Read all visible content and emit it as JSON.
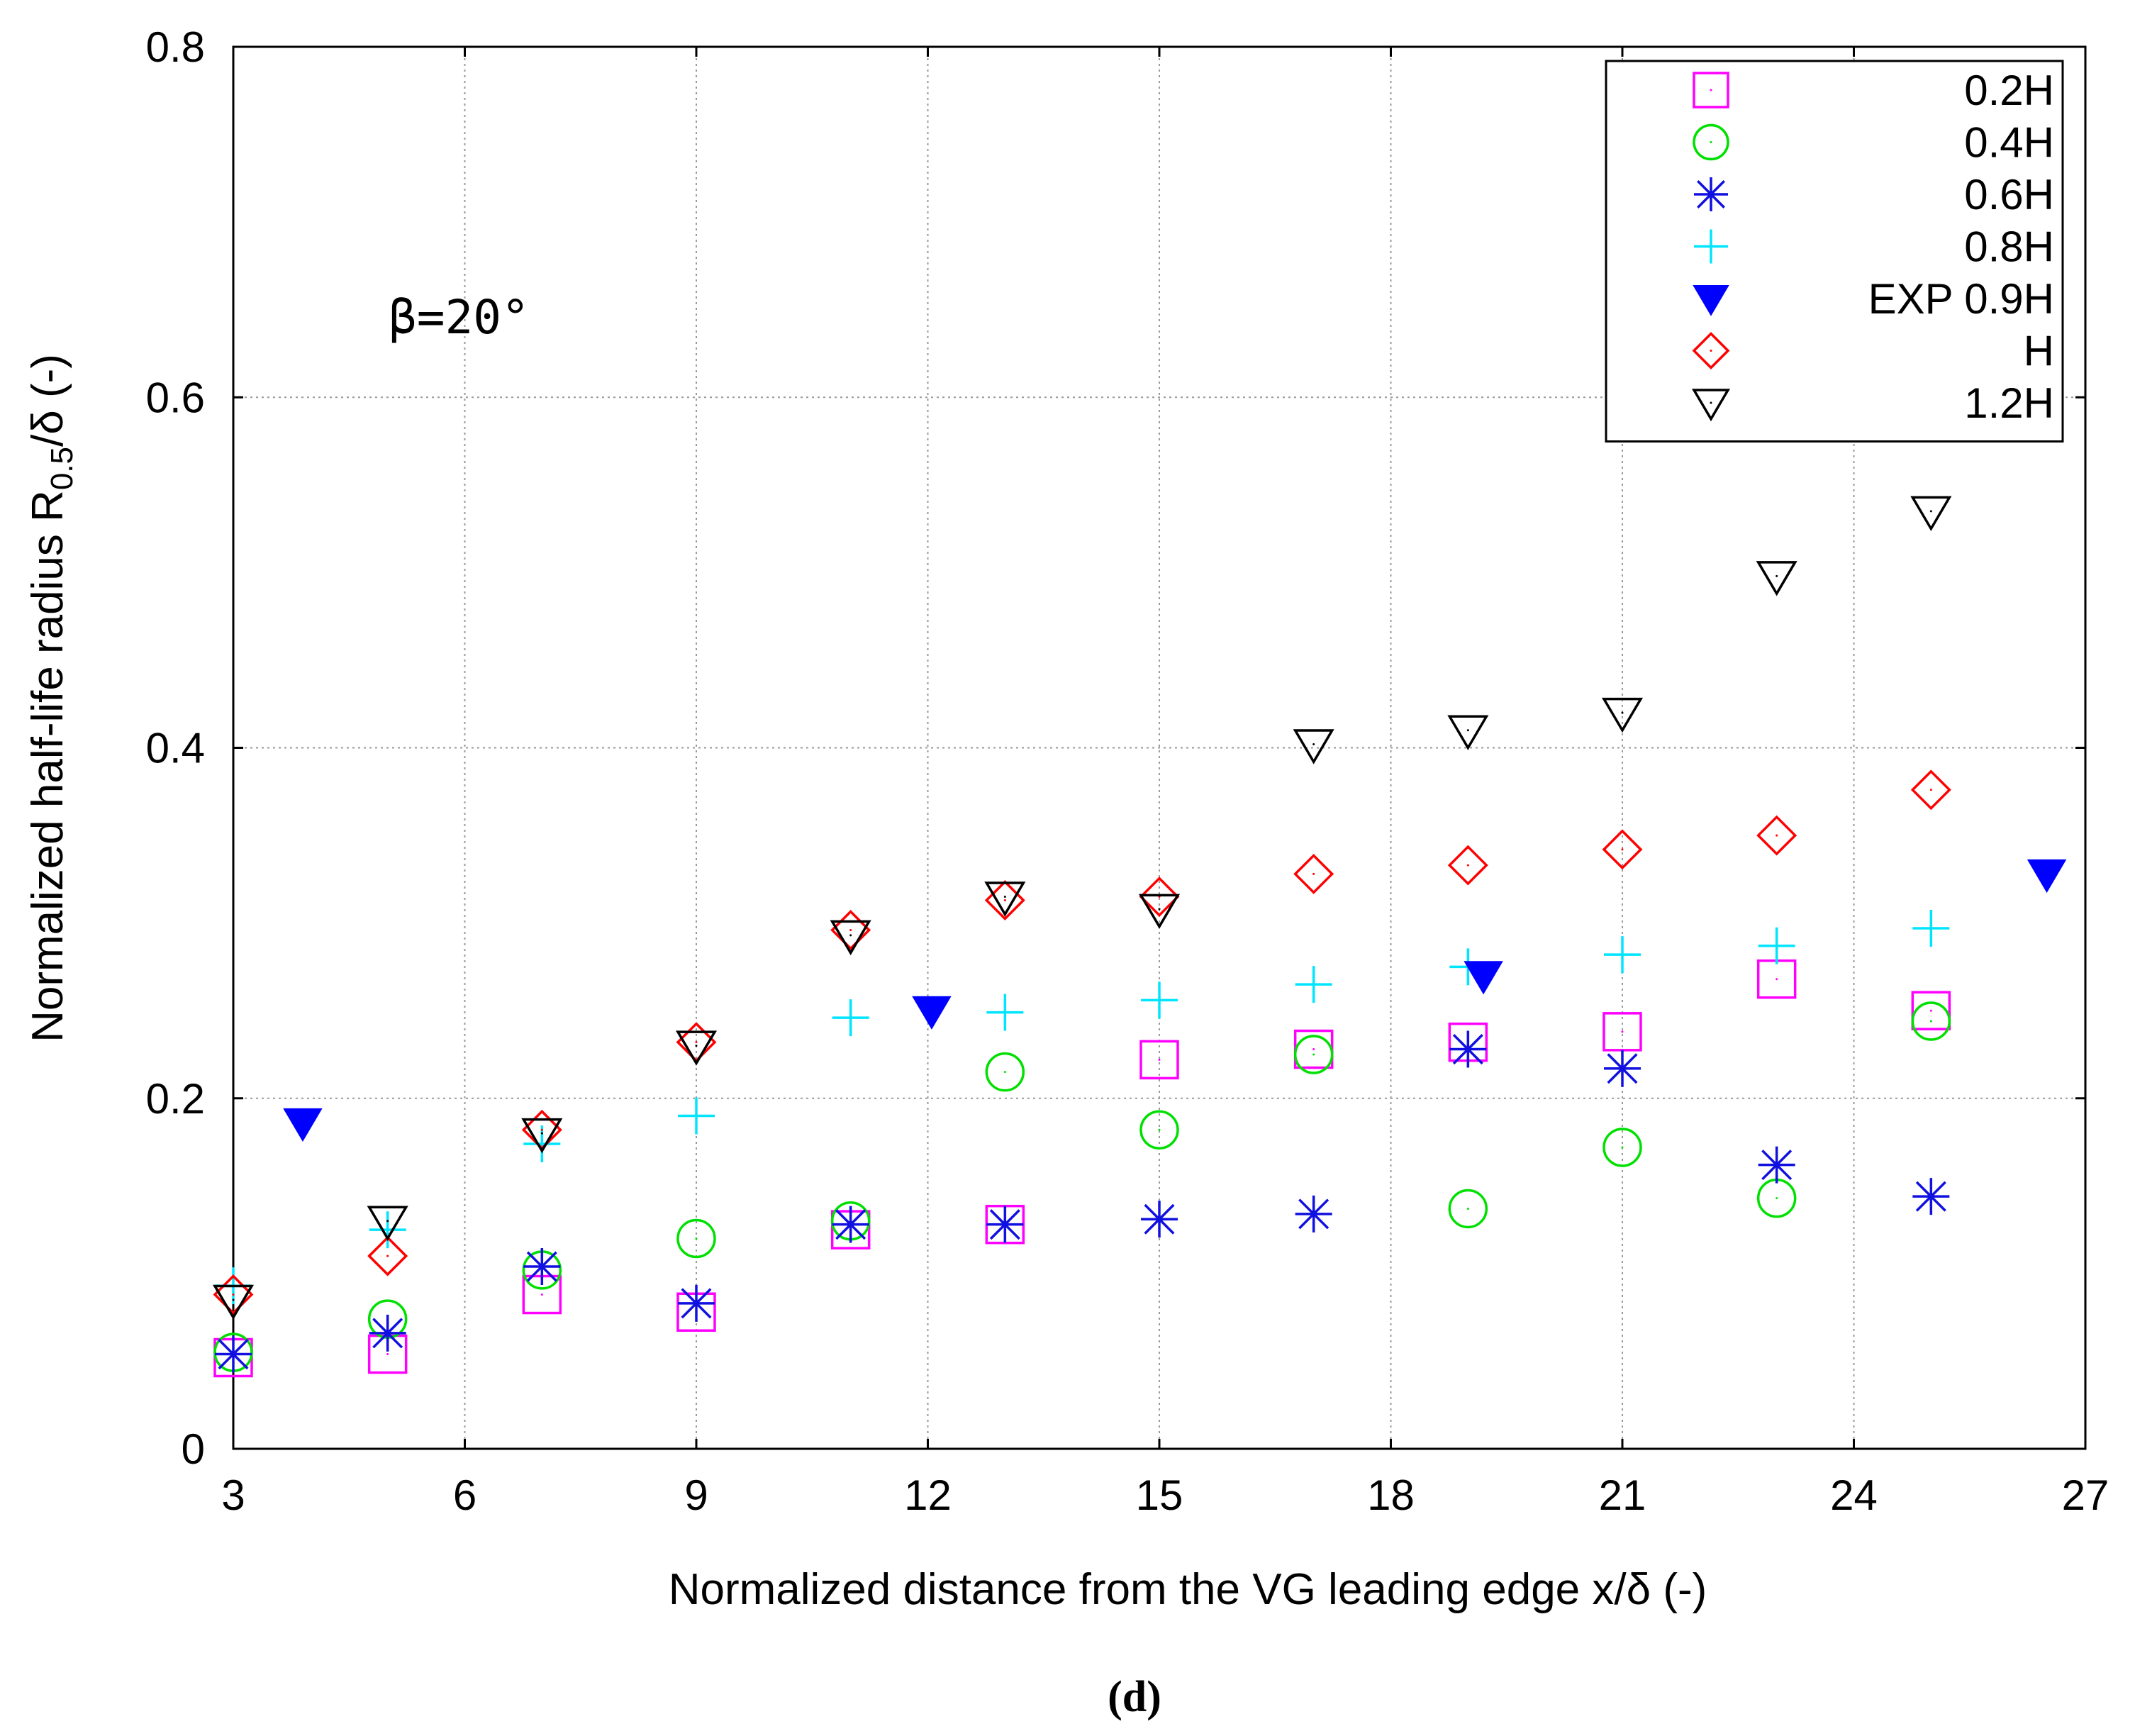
{
  "chart_data": {
    "type": "scatter",
    "xlabel": "Normalized distance from the VG leading edge x/δ (-)",
    "ylabel": {
      "main": "Normalized half-life radius  R",
      "sub": "0.5",
      "tail": "/δ (-)"
    },
    "xlim": [
      3,
      27
    ],
    "ylim": [
      0,
      0.8
    ],
    "xticks": [
      3,
      6,
      9,
      12,
      15,
      18,
      21,
      24,
      27
    ],
    "yticks": [
      0,
      0.2,
      0.4,
      0.6,
      0.8
    ],
    "xtick_labels": [
      "3",
      "6",
      "9",
      "12",
      "15",
      "18",
      "21",
      "24",
      "27"
    ],
    "ytick_labels": [
      "0",
      "0.2",
      "0.4",
      "0.6",
      "0.8"
    ],
    "grid": true,
    "legend_position": "top-right",
    "annotation": "β=20°",
    "caption": "(d)",
    "series": [
      {
        "name": "0.2H",
        "marker": "square",
        "color": "#ff00ff",
        "x": [
          3,
          5,
          7,
          9,
          11,
          13,
          15,
          17,
          19,
          21,
          23,
          25
        ],
        "y": [
          0.052,
          0.054,
          0.088,
          0.078,
          0.125,
          0.128,
          0.222,
          0.228,
          0.232,
          0.238,
          0.268,
          0.25
        ]
      },
      {
        "name": "0.4H",
        "marker": "circle",
        "color": "#00e000",
        "x": [
          3,
          5,
          7,
          9,
          11,
          13,
          15,
          17,
          19,
          21,
          23,
          25
        ],
        "y": [
          0.055,
          0.074,
          0.102,
          0.12,
          0.13,
          0.215,
          0.182,
          0.225,
          0.137,
          0.172,
          0.143,
          0.244
        ]
      },
      {
        "name": "0.6H",
        "marker": "star",
        "color": "#1010e0",
        "x": [
          3,
          5,
          7,
          9,
          11,
          13,
          15,
          17,
          19,
          21,
          23,
          25
        ],
        "y": [
          0.054,
          0.066,
          0.104,
          0.083,
          0.128,
          0.128,
          0.131,
          0.134,
          0.228,
          0.217,
          0.162,
          0.144
        ]
      },
      {
        "name": "0.8H",
        "marker": "plus",
        "color": "#00e5ff",
        "x": [
          3,
          5,
          7,
          9,
          11,
          13,
          15,
          17,
          19,
          21,
          23,
          25
        ],
        "y": [
          0.093,
          0.125,
          0.174,
          0.19,
          0.246,
          0.249,
          0.256,
          0.265,
          0.275,
          0.282,
          0.287,
          0.297
        ]
      },
      {
        "name": "EXP 0.9H",
        "marker": "filled-triangle-down",
        "color": "#0000ff",
        "x": [
          3.9,
          12.05,
          19.2,
          26.5
        ],
        "y": [
          0.186,
          0.25,
          0.27,
          0.328
        ]
      },
      {
        "name": "H",
        "marker": "diamond",
        "color": "#ff0000",
        "x": [
          3,
          5,
          7,
          9,
          11,
          13,
          15,
          17,
          19,
          21,
          23,
          25
        ],
        "y": [
          0.088,
          0.11,
          0.182,
          0.232,
          0.296,
          0.313,
          0.315,
          0.328,
          0.333,
          0.342,
          0.35,
          0.376
        ]
      },
      {
        "name": "1.2H",
        "marker": "triangle-down",
        "color": "#000000",
        "x": [
          3,
          5,
          7,
          9,
          11,
          13,
          15,
          17,
          19,
          21,
          23,
          25
        ],
        "y": [
          0.085,
          0.13,
          0.18,
          0.23,
          0.293,
          0.315,
          0.308,
          0.402,
          0.41,
          0.42,
          0.498,
          0.535
        ]
      }
    ]
  }
}
